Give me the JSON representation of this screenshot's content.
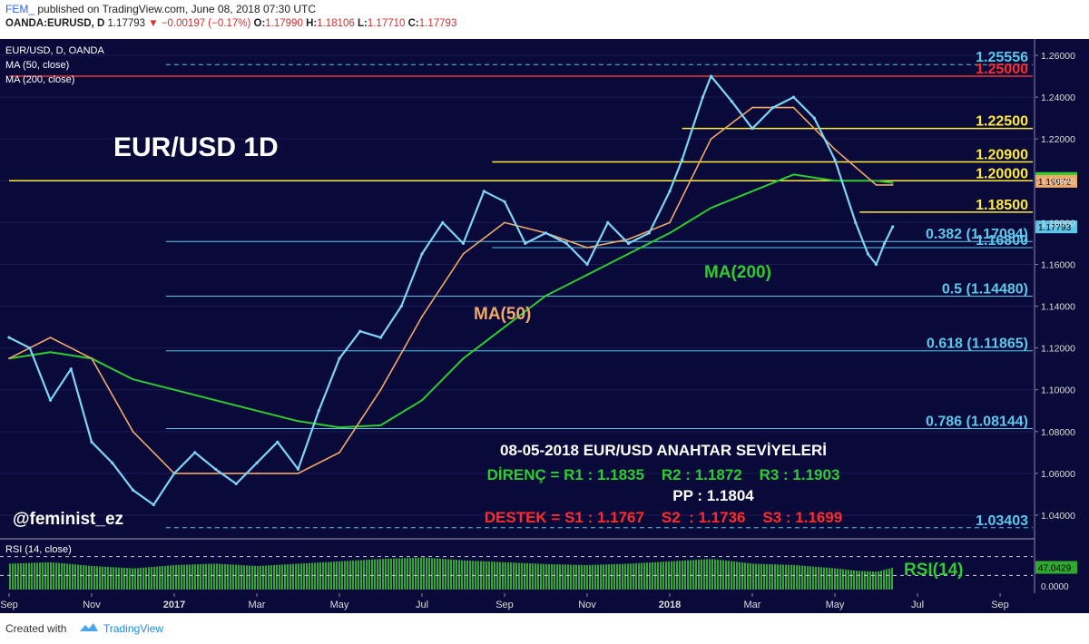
{
  "header": {
    "publisher": "FEM_",
    "published_text": "published on TradingView.com, June 08, 2018 07:30 UTC",
    "symbol": "OANDA:EURUSD, D",
    "last": "1.17793",
    "change": "−0.00197 (−0.17%)",
    "o_label": "O:",
    "o": "1.17990",
    "h_label": "H:",
    "h": "1.18106",
    "l_label": "L:",
    "l": "1.17710",
    "c_label": "C:",
    "c": "1.17793"
  },
  "legend": {
    "symbol": "EUR/USD, D, OANDA",
    "ma50": "MA (50, close)",
    "ma200": "MA (200, close)",
    "rsi": "RSI (14, close)"
  },
  "annotations": {
    "big_title": "EUR/USD 1D",
    "ma50": "MA(50)",
    "ma200": "MA(200)",
    "rsi": "RSI(14)",
    "author": "@feminist_ez",
    "key_levels_title": "08-05-2018 EUR/USD  ANAHTAR SEVİYELERİ",
    "resistance": "DİRENÇ = R1 : 1.1835    R2 : 1.1872    R3 : 1.1903",
    "pivot": "PP : 1.1804",
    "support": "DESTEK = S1 : 1.1767    S2  : 1.1736    S3 : 1.1699"
  },
  "footer": {
    "created_with": "Created with",
    "brand": "TradingView"
  },
  "colors": {
    "background": "#0a0a3a",
    "candle": "#7fd3f5",
    "ma50": "#f0a868",
    "ma200": "#2ecc2e",
    "red_line": "#e53935",
    "yellow_line": "#ffeb3b",
    "fib_line": "#5bc8ea",
    "rsi_bar": "#2faa2f"
  },
  "chart_data": {
    "type": "line",
    "x_ticks": [
      "Sep",
      "Nov",
      "2017",
      "Mar",
      "May",
      "Jul",
      "Sep",
      "Nov",
      "2018",
      "Mar",
      "May",
      "Jul",
      "Sep"
    ],
    "y_ticks": [
      "1.26000",
      "1.24000",
      "1.22000",
      "1.20000",
      "1.18000",
      "1.16000",
      "1.14000",
      "1.12000",
      "1.10000",
      "1.08000",
      "1.06000",
      "1.04000"
    ],
    "ylim": [
      1.032,
      1.262
    ],
    "x_ticks_values": [
      0,
      2,
      4,
      6,
      8,
      10,
      12,
      14,
      16,
      18,
      20,
      22,
      24
    ],
    "series": [
      {
        "name": "EUR/USD",
        "x": [
          0,
          0.5,
          1,
          1.5,
          2,
          2.5,
          3,
          3.5,
          4,
          4.5,
          5,
          5.5,
          6,
          6.5,
          7,
          7.5,
          8,
          8.5,
          9,
          9.5,
          10,
          10.5,
          11,
          11.5,
          12,
          12.5,
          13,
          13.5,
          14,
          14.5,
          15,
          15.5,
          16,
          16.3,
          16.8,
          17,
          17.5,
          18,
          18.5,
          19,
          19.5,
          20,
          20.5,
          20.8,
          21,
          21.2,
          21.4
        ],
        "values": [
          1.125,
          1.12,
          1.095,
          1.11,
          1.075,
          1.065,
          1.052,
          1.045,
          1.06,
          1.07,
          1.062,
          1.055,
          1.065,
          1.075,
          1.062,
          1.09,
          1.115,
          1.128,
          1.125,
          1.14,
          1.165,
          1.18,
          1.17,
          1.195,
          1.19,
          1.17,
          1.175,
          1.17,
          1.16,
          1.18,
          1.17,
          1.175,
          1.195,
          1.21,
          1.24,
          1.25,
          1.238,
          1.225,
          1.235,
          1.24,
          1.23,
          1.21,
          1.18,
          1.165,
          1.16,
          1.17,
          1.178
        ]
      },
      {
        "name": "MA(50)",
        "x": [
          0,
          1,
          2,
          3,
          4,
          5,
          6,
          7,
          8,
          9,
          10,
          11,
          12,
          13,
          14,
          15,
          16,
          17,
          18,
          19,
          20,
          21,
          21.4
        ],
        "values": [
          1.115,
          1.125,
          1.115,
          1.08,
          1.06,
          1.06,
          1.06,
          1.06,
          1.07,
          1.1,
          1.135,
          1.165,
          1.18,
          1.175,
          1.168,
          1.172,
          1.18,
          1.22,
          1.235,
          1.235,
          1.215,
          1.198,
          1.198
        ]
      },
      {
        "name": "MA(200)",
        "x": [
          0,
          1,
          2,
          3,
          4,
          5,
          6,
          7,
          8,
          9,
          10,
          11,
          12,
          13,
          14,
          15,
          16,
          17,
          18,
          19,
          20,
          21,
          21.4
        ],
        "values": [
          1.115,
          1.118,
          1.115,
          1.105,
          1.1,
          1.095,
          1.09,
          1.085,
          1.082,
          1.083,
          1.095,
          1.115,
          1.13,
          1.145,
          1.155,
          1.165,
          1.175,
          1.187,
          1.195,
          1.203,
          1.2,
          1.2,
          1.199
        ]
      }
    ],
    "levels": [
      {
        "label": "1.25556",
        "value": 1.25556,
        "style": "dashed",
        "color": "#5bc8ea",
        "text_color": "#5bc8ea",
        "x_start": 3.8
      },
      {
        "label": "1.25000",
        "value": 1.25,
        "style": "solid",
        "color": "#e53935",
        "text_color": "#ff2b2b",
        "x_start": 0
      },
      {
        "label": "1.22500",
        "value": 1.225,
        "style": "solid",
        "color": "#ffeb3b",
        "text_color": "#ffeb3b",
        "x_start": 16.3
      },
      {
        "label": "1.20900",
        "value": 1.209,
        "style": "solid",
        "color": "#ffeb3b",
        "text_color": "#ffeb3b",
        "x_start": 11.7
      },
      {
        "label": "1.20000",
        "value": 1.2,
        "style": "solid",
        "color": "#ffeb3b",
        "text_color": "#ffeb3b",
        "x_start": 0
      },
      {
        "label": "1.18500",
        "value": 1.185,
        "style": "solid",
        "color": "#ffeb3b",
        "text_color": "#ffeb3b",
        "x_start": 20.6
      },
      {
        "label": "0.382 (1.17094)",
        "value": 1.17094,
        "style": "solid",
        "color": "#5bc8ea",
        "text_color": "#5bc8ea",
        "x_start": 3.8
      },
      {
        "label": "1.16800",
        "value": 1.168,
        "style": "solid",
        "color": "#5bc8ea",
        "text_color": "#5bc8ea",
        "x_start": 11.7
      },
      {
        "label": "0.5 (1.14480)",
        "value": 1.1448,
        "style": "solid",
        "color": "#5bc8ea",
        "text_color": "#5bc8ea",
        "x_start": 3.8
      },
      {
        "label": "0.618 (1.11865)",
        "value": 1.11865,
        "style": "solid",
        "color": "#5bc8ea",
        "text_color": "#5bc8ea",
        "x_start": 3.8
      },
      {
        "label": "0.786 (1.08144)",
        "value": 1.08144,
        "style": "solid",
        "color": "#5bc8ea",
        "text_color": "#5bc8ea",
        "x_start": 3.8
      },
      {
        "label": "1.03403",
        "value": 1.03403,
        "style": "dashed",
        "color": "#5bc8ea",
        "text_color": "#5bc8ea",
        "x_start": 3.8
      }
    ],
    "price_tags": [
      {
        "label": "1.20110",
        "value": 1.2011,
        "bg": "#2ecc2e",
        "fg": "#000000"
      },
      {
        "label": "1.19972",
        "value": 1.19972,
        "bg": "#f0a868",
        "fg": "#000000"
      },
      {
        "label": "1.17793",
        "value": 1.17793,
        "bg": "#5bc8ea",
        "fg": "#000000"
      }
    ],
    "rsi": {
      "ticks": [
        "0.0000"
      ],
      "current_label": "47.0429",
      "current": 47.0429,
      "ylim": [
        0,
        100
      ],
      "x": [
        0,
        1,
        2,
        3,
        4,
        5,
        6,
        7,
        8,
        9,
        10,
        11,
        12,
        13,
        14,
        15,
        16,
        17,
        18,
        19,
        20,
        20.5,
        21,
        21.4
      ],
      "values": [
        55,
        58,
        50,
        45,
        52,
        55,
        50,
        55,
        60,
        65,
        68,
        62,
        58,
        54,
        52,
        55,
        60,
        65,
        55,
        52,
        45,
        40,
        38,
        47
      ]
    }
  }
}
